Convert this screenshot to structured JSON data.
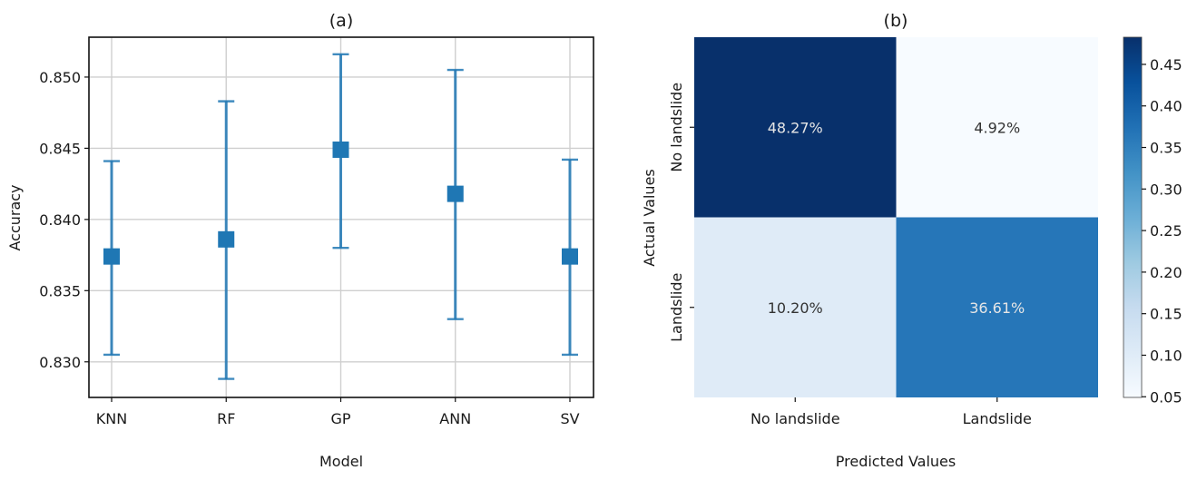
{
  "chart_data": [
    {
      "type": "scatter",
      "title": "(a)",
      "xlabel": "Model",
      "ylabel": "Accuracy",
      "categories": [
        "KNN",
        "RF",
        "GP",
        "ANN",
        "SV"
      ],
      "values": [
        0.8374,
        0.8386,
        0.8449,
        0.8418,
        0.8374
      ],
      "error_low": [
        0.8305,
        0.8288,
        0.838,
        0.833,
        0.8305
      ],
      "error_high": [
        0.8441,
        0.8483,
        0.8516,
        0.8505,
        0.8442
      ],
      "ylim": [
        0.8275,
        0.8528
      ],
      "yticks": [
        "0.830",
        "0.835",
        "0.840",
        "0.845",
        "0.850"
      ],
      "ytick_values": [
        0.83,
        0.835,
        0.84,
        0.845,
        0.85
      ],
      "grid": true,
      "marker": "square",
      "color": "#1f77b4"
    },
    {
      "type": "heatmap",
      "title": "(b)",
      "xlabel": "Predicted Values",
      "ylabel": "Actual Values",
      "x_categories": [
        "No landslide",
        "Landslide"
      ],
      "y_categories": [
        "No landslide",
        "Landslide"
      ],
      "values": [
        [
          0.4827,
          0.0492
        ],
        [
          0.102,
          0.3661
        ]
      ],
      "cell_labels": [
        [
          "48.27%",
          "4.92%"
        ],
        [
          "10.20%",
          "36.61%"
        ]
      ],
      "colorbar": {
        "ticks": [
          "0.05",
          "0.10",
          "0.15",
          "0.20",
          "0.25",
          "0.30",
          "0.35",
          "0.40",
          "0.45"
        ],
        "tick_values": [
          0.05,
          0.1,
          0.15,
          0.2,
          0.25,
          0.3,
          0.35,
          0.4,
          0.45
        ],
        "range": [
          0.0492,
          0.4827
        ],
        "colormap": "Blues",
        "color_stops": [
          "#f7fbff",
          "#deebf7",
          "#c6dbef",
          "#9ecae1",
          "#6baed6",
          "#4292c6",
          "#2171b5",
          "#08519c",
          "#08306b"
        ]
      }
    }
  ]
}
